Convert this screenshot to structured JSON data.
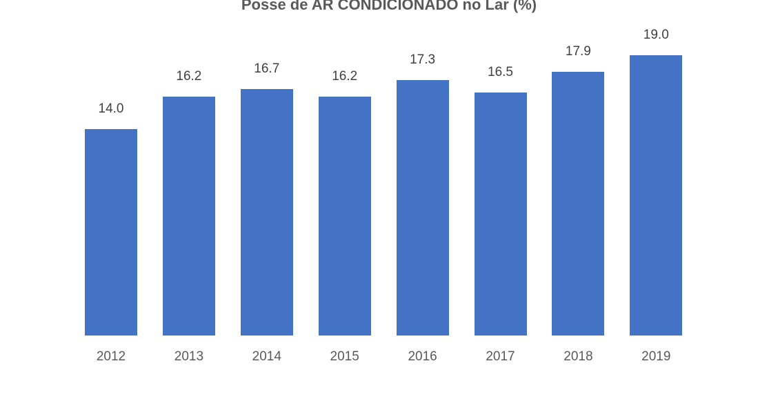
{
  "chart_data": {
    "type": "bar",
    "title": "Posse de AR CONDICIONADO no Lar (%)",
    "categories": [
      "2012",
      "2013",
      "2014",
      "2015",
      "2016",
      "2017",
      "2018",
      "2019"
    ],
    "values": [
      14.0,
      16.2,
      16.7,
      16.2,
      17.3,
      16.5,
      17.9,
      19.0
    ],
    "value_labels": [
      "14.0",
      "16.2",
      "16.7",
      "16.2",
      "17.3",
      "16.5",
      "17.9",
      "19.0"
    ],
    "xlabel": "",
    "ylabel": "",
    "ylim": [
      0,
      20
    ],
    "grid": false,
    "legend": "none",
    "bar_color": "#4472c4"
  }
}
